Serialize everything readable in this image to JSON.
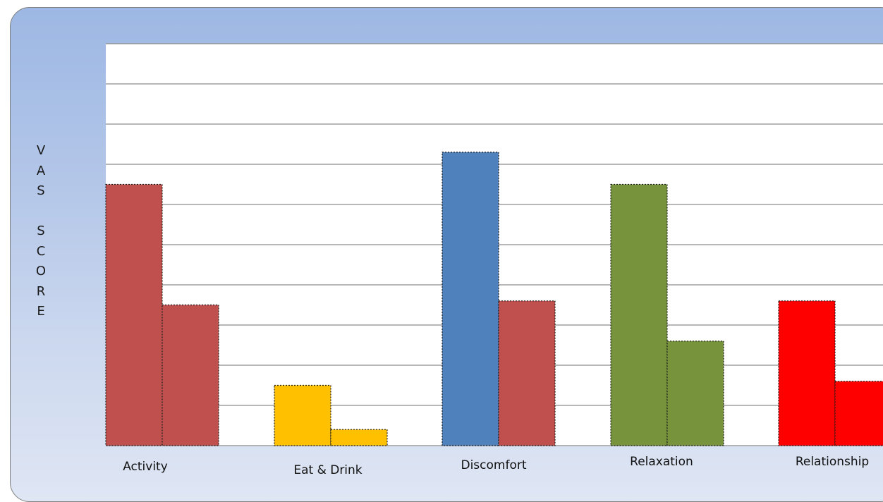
{
  "chart_data": {
    "type": "bar",
    "title": "",
    "xlabel": "",
    "ylabel": "VAS SCORE",
    "ylabel_lines": [
      "V",
      "A",
      "S",
      "",
      "S",
      "C",
      "O",
      "R",
      "E"
    ],
    "ylim": [
      0,
      10
    ],
    "grid": true,
    "categories": [
      "Activity",
      "Eat & Drink",
      "Discomfort",
      "Relaxation",
      "Relationship"
    ],
    "series": [
      {
        "values": [
          6.5,
          1.5,
          7.3,
          6.5,
          3.6
        ],
        "colors": [
          "#c0504d",
          "#ffc000",
          "#4f81bd",
          "#77933c",
          "#ff0000"
        ]
      },
      {
        "values": [
          3.5,
          0.4,
          3.6,
          2.6,
          1.6
        ],
        "colors": [
          "#c0504d",
          "#ffc000",
          "#c0504d",
          "#77933c",
          "#ff0000"
        ]
      }
    ]
  }
}
